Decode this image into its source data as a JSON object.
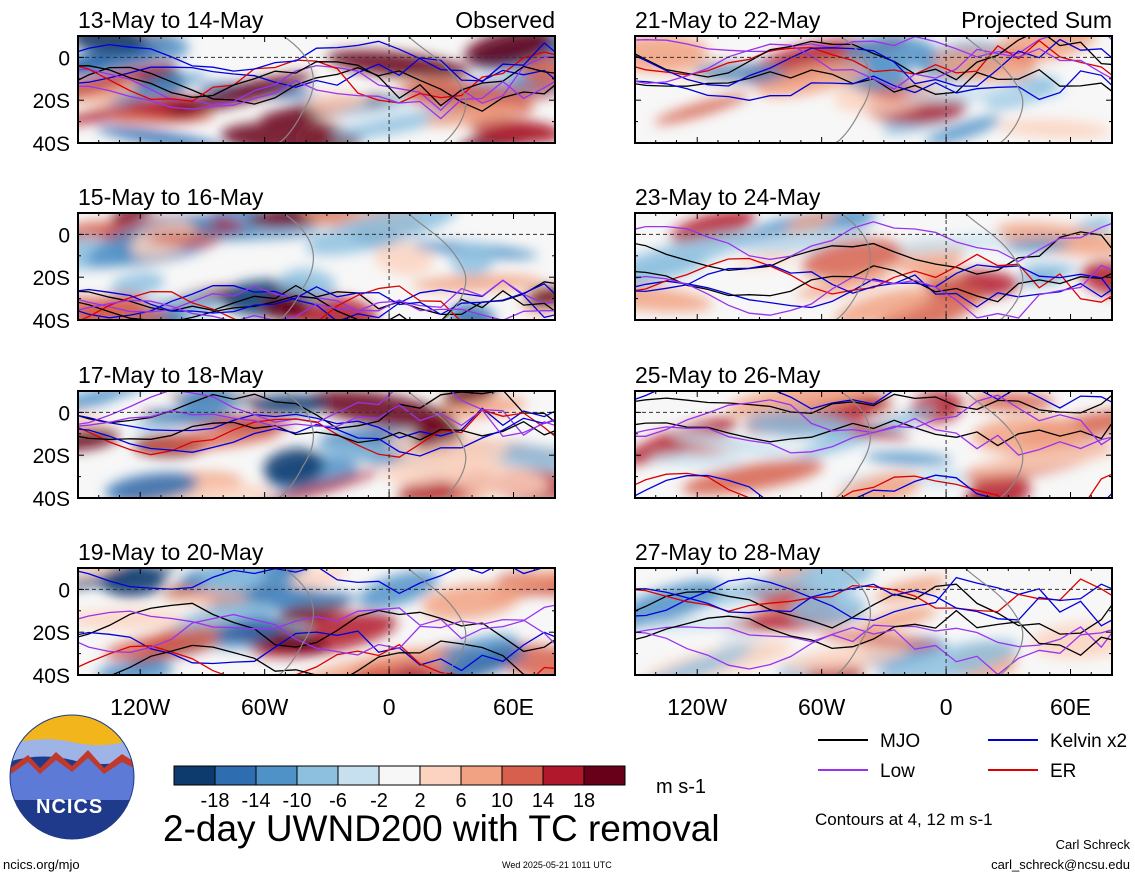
{
  "chart_data": {
    "type": "heatmap",
    "title": "2-day UWND200 with TC removal",
    "columns": [
      {
        "label": "Observed",
        "panels": [
          "13-May to 14-May",
          "15-May to 16-May",
          "17-May to 18-May",
          "19-May to 20-May"
        ]
      },
      {
        "label": "Projected Sum",
        "panels": [
          "21-May to 22-May",
          "23-May to 24-May",
          "25-May to 26-May",
          "27-May to 28-May"
        ]
      }
    ],
    "x_ticks": [
      "120W",
      "60W",
      "0",
      "60E"
    ],
    "y_ticks": [
      "0",
      "20S",
      "40S"
    ],
    "x_range": [
      -150,
      80
    ],
    "y_range": [
      -40,
      10
    ],
    "colorbar": {
      "unit": "m s-1",
      "ticks": [
        "-18",
        "-14",
        "-10",
        "-6",
        "-2",
        "2",
        "6",
        "10",
        "14",
        "18"
      ],
      "colors": [
        "#0d3b6e",
        "#2e6db0",
        "#4f92c8",
        "#8dbfdf",
        "#c6e0f0",
        "#f7f7f7",
        "#fbd3c0",
        "#f1a283",
        "#d6604d",
        "#b2182b",
        "#670018"
      ]
    },
    "legend": [
      {
        "label": "MJO",
        "color": "#000000"
      },
      {
        "label": "Kelvin x2",
        "color": "#0000dd"
      },
      {
        "label": "Low",
        "color": "#9933ee"
      },
      {
        "label": "ER",
        "color": "#dd0000"
      }
    ],
    "contour_note": "Contours at 4, 12 m s-1"
  },
  "logo": {
    "text": "NCICS"
  },
  "footer": {
    "url": "ncics.org/mjo",
    "timestamp": "Wed 2025-05-21 1011 UTC",
    "author": "Carl Schreck",
    "email": "carl_schreck@ncsu.edu"
  }
}
